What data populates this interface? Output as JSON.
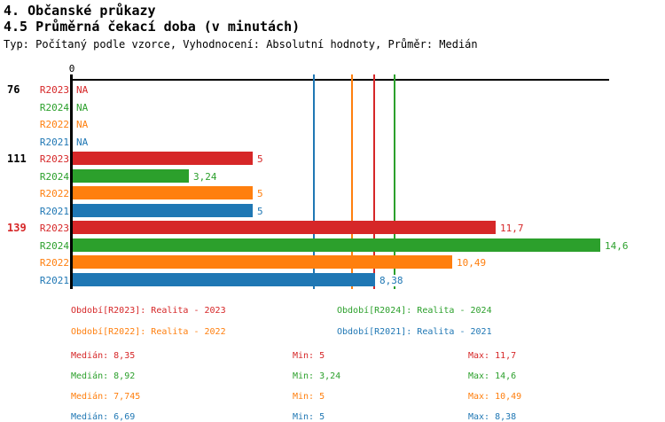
{
  "title": "4. Občanské průkazy",
  "subtitle": "4.5 Průměrná čekací doba (v minutách)",
  "meta": "Typ: Počítaný podle vzorce, Vyhodnocení: Absolutní hodnoty, Průměr: Medián",
  "axis": {
    "zero_label": "0"
  },
  "colors": {
    "R2023": "#d62728",
    "R2024": "#2ca02c",
    "R2022": "#ff7f0e",
    "R2021": "#1f77b4",
    "axis": "#000000"
  },
  "chart_data": {
    "type": "bar",
    "orientation": "horizontal",
    "title": "4.5 Průměrná čekací doba (v minutách)",
    "xlim": [
      0,
      14.83
    ],
    "grid": false,
    "series_order": [
      "R2023",
      "R2024",
      "R2022",
      "R2021"
    ],
    "groups": [
      {
        "label": "76",
        "label_color": "#000000",
        "values": [
          null,
          null,
          null,
          null
        ],
        "display": [
          "NA",
          "NA",
          "NA",
          "NA"
        ]
      },
      {
        "label": "111",
        "label_color": "#000000",
        "values": [
          5,
          3.24,
          5,
          5
        ],
        "display": [
          "5",
          "3,24",
          "5",
          "5"
        ]
      },
      {
        "label": "139",
        "label_color": "#d62728",
        "values": [
          11.7,
          14.6,
          10.49,
          8.38
        ],
        "display": [
          "11,7",
          "14,6",
          "10,49",
          "8,38"
        ]
      }
    ],
    "median_lines": [
      {
        "series": "R2023",
        "value": 8.35
      },
      {
        "series": "R2024",
        "value": 8.92
      },
      {
        "series": "R2022",
        "value": 7.745
      },
      {
        "series": "R2021",
        "value": 6.69
      }
    ]
  },
  "legend": [
    {
      "series": "R2023",
      "label": "Období[R2023]: Realita - 2023"
    },
    {
      "series": "R2024",
      "label": "Období[R2024]: Realita - 2024"
    },
    {
      "series": "R2022",
      "label": "Období[R2022]: Realita - 2022"
    },
    {
      "series": "R2021",
      "label": "Období[R2021]: Realita - 2021"
    }
  ],
  "stats": [
    {
      "series": "R2023",
      "median": "Medián: 8,35",
      "min": "Min: 5",
      "max": "Max: 11,7"
    },
    {
      "series": "R2024",
      "median": "Medián: 8,92",
      "min": "Min: 3,24",
      "max": "Max: 14,6"
    },
    {
      "series": "R2022",
      "median": "Medián: 7,745",
      "min": "Min: 5",
      "max": "Max: 10,49"
    },
    {
      "series": "R2021",
      "median": "Medián: 6,69",
      "min": "Min: 5",
      "max": "Max: 8,38"
    }
  ]
}
